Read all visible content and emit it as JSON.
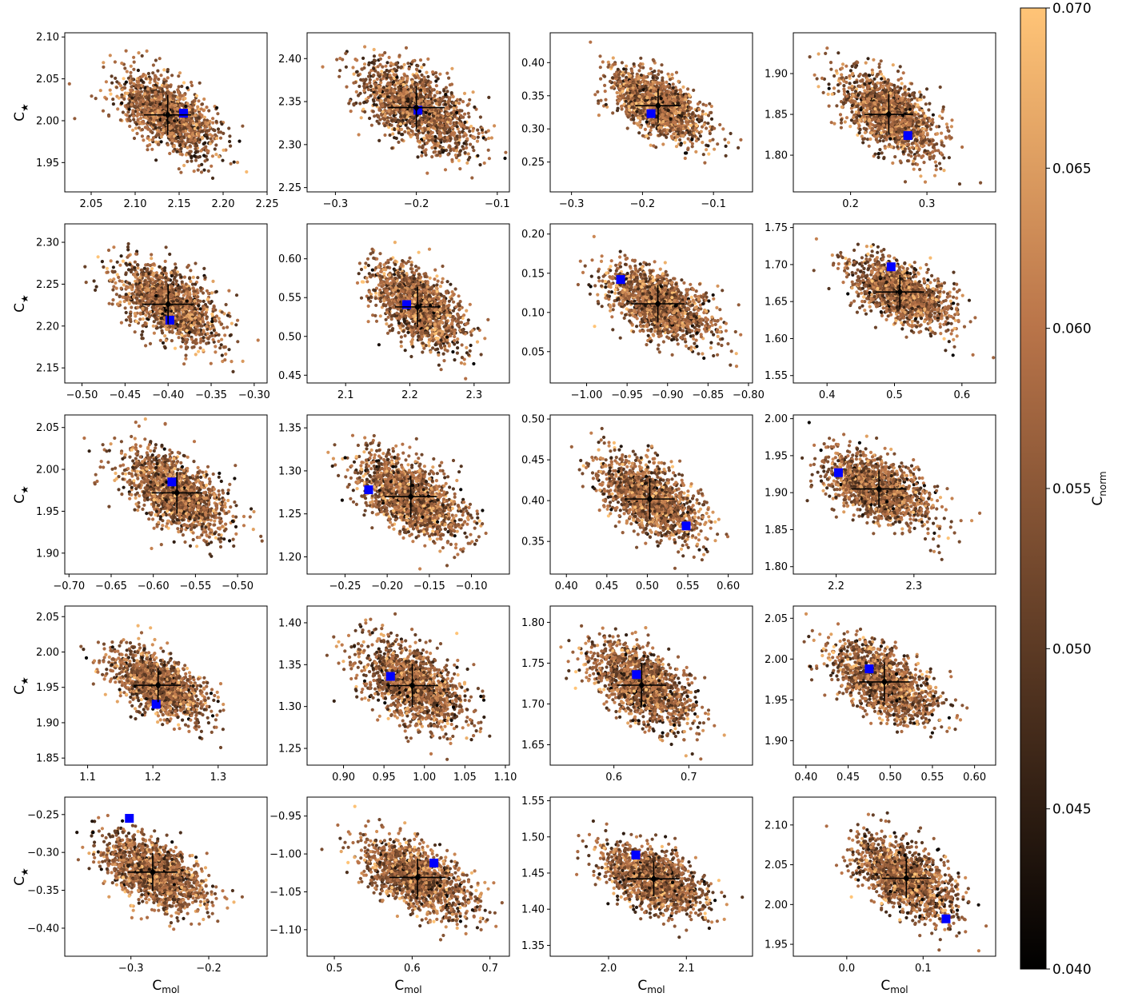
{
  "chart_data": {
    "type": "scatter",
    "grid": false,
    "ylabel": "C",
    "ylabel_sub": "★",
    "xlabel": "C",
    "xlabel_sub": "mol",
    "colorbar": {
      "label": "C",
      "label_sub": "norm",
      "range": [
        0.04,
        0.07
      ],
      "ticks": [
        "0.070",
        "0.065",
        "0.060",
        "0.055",
        "0.050",
        "0.045",
        "0.040"
      ],
      "colors": [
        "#000000",
        "#5c3a24",
        "#b97449",
        "#ffc477"
      ]
    },
    "marker_colors": {
      "estimate": "#000000",
      "truth": "#0000ff"
    },
    "panels": [
      {
        "xlim": [
          2.02,
          2.25
        ],
        "ylim": [
          1.915,
          2.105
        ],
        "xticks": [
          2.05,
          2.1,
          2.15,
          2.2,
          2.25
        ],
        "xtick_labels": [
          "2.05",
          "2.10",
          "2.15",
          "2.20",
          "2.25"
        ],
        "yticks": [
          1.95,
          2.0,
          2.05,
          2.1
        ],
        "ytick_labels": [
          "1.95",
          "2.00",
          "2.05",
          "2.10"
        ],
        "mean": [
          2.137,
          2.007
        ],
        "xerr": 0.027,
        "yerr": 0.024,
        "truth": [
          2.155,
          2.009
        ]
      },
      {
        "xlim": [
          -0.335,
          -0.085
        ],
        "ylim": [
          2.245,
          2.43
        ],
        "xticks": [
          -0.3,
          -0.2,
          -0.1
        ],
        "xtick_labels": [
          "−0.3",
          "−0.2",
          "−0.1"
        ],
        "yticks": [
          2.25,
          2.3,
          2.35,
          2.4
        ],
        "ytick_labels": [
          "2.25",
          "2.30",
          "2.35",
          "2.40"
        ],
        "mean": [
          -0.2,
          2.343
        ],
        "xerr": 0.035,
        "yerr": 0.025,
        "truth": [
          -0.198,
          2.34
        ]
      },
      {
        "xlim": [
          -0.33,
          -0.045
        ],
        "ylim": [
          0.205,
          0.445
        ],
        "xticks": [
          -0.3,
          -0.2,
          -0.1
        ],
        "xtick_labels": [
          "−0.3",
          "−0.2",
          "−0.1"
        ],
        "yticks": [
          0.25,
          0.3,
          0.35,
          0.4
        ],
        "ytick_labels": [
          "0.25",
          "0.30",
          "0.35",
          "0.40"
        ],
        "mean": [
          -0.178,
          0.335
        ],
        "xerr": 0.032,
        "yerr": 0.026,
        "truth": [
          -0.188,
          0.323
        ]
      },
      {
        "xlim": [
          0.125,
          0.39
        ],
        "ylim": [
          1.755,
          1.95
        ],
        "xticks": [
          0.2,
          0.3
        ],
        "xtick_labels": [
          "0.2",
          "0.3"
        ],
        "yticks": [
          1.8,
          1.85,
          1.9
        ],
        "ytick_labels": [
          "1.80",
          "1.85",
          "1.90"
        ],
        "mean": [
          0.25,
          1.85
        ],
        "xerr": 0.032,
        "yerr": 0.025,
        "truth": [
          0.275,
          1.824
        ]
      },
      {
        "xlim": [
          -0.52,
          -0.285
        ],
        "ylim": [
          2.132,
          2.322
        ],
        "xticks": [
          -0.5,
          -0.45,
          -0.4,
          -0.35,
          -0.3
        ],
        "xtick_labels": [
          "−0.50",
          "−0.45",
          "−0.40",
          "−0.35",
          "−0.30"
        ],
        "yticks": [
          2.15,
          2.2,
          2.25,
          2.3
        ],
        "ytick_labels": [
          "2.15",
          "2.20",
          "2.25",
          "2.30"
        ],
        "mean": [
          -0.4,
          2.226
        ],
        "xerr": 0.03,
        "yerr": 0.024,
        "truth": [
          -0.398,
          2.207
        ]
      },
      {
        "xlim": [
          2.04,
          2.355
        ],
        "ylim": [
          0.44,
          0.645
        ],
        "xticks": [
          2.1,
          2.2,
          2.3
        ],
        "xtick_labels": [
          "2.1",
          "2.2",
          "2.3"
        ],
        "yticks": [
          0.45,
          0.5,
          0.55,
          0.6
        ],
        "ytick_labels": [
          "0.45",
          "0.50",
          "0.55",
          "0.60"
        ],
        "mean": [
          2.212,
          0.538
        ],
        "xerr": 0.035,
        "yerr": 0.026,
        "truth": [
          2.195,
          0.541
        ]
      },
      {
        "xlim": [
          -1.045,
          -0.795
        ],
        "ylim": [
          0.01,
          0.213
        ],
        "xticks": [
          -1.0,
          -0.95,
          -0.9,
          -0.85,
          -0.8
        ],
        "xtick_labels": [
          "−1.00",
          "−0.95",
          "−0.90",
          "−0.85",
          "−0.80"
        ],
        "yticks": [
          0.05,
          0.1,
          0.15,
          0.2
        ],
        "ytick_labels": [
          "0.05",
          "0.10",
          "0.15",
          "0.20"
        ],
        "mean": [
          -0.912,
          0.111
        ],
        "xerr": 0.033,
        "yerr": 0.024,
        "truth": [
          -0.958,
          0.142
        ]
      },
      {
        "xlim": [
          0.35,
          0.65
        ],
        "ylim": [
          1.54,
          1.755
        ],
        "xticks": [
          0.4,
          0.5,
          0.6
        ],
        "xtick_labels": [
          "0.4",
          "0.5",
          "0.6"
        ],
        "yticks": [
          1.55,
          1.6,
          1.65,
          1.7,
          1.75
        ],
        "ytick_labels": [
          "1.55",
          "1.60",
          "1.65",
          "1.70",
          "1.75"
        ],
        "mean": [
          0.508,
          1.663
        ],
        "xerr": 0.036,
        "yerr": 0.023,
        "truth": [
          0.495,
          1.697
        ]
      },
      {
        "xlim": [
          -0.705,
          -0.465
        ],
        "ylim": [
          1.875,
          2.065
        ],
        "xticks": [
          -0.7,
          -0.65,
          -0.6,
          -0.55,
          -0.5
        ],
        "xtick_labels": [
          "−0.70",
          "−0.65",
          "−0.60",
          "−0.55",
          "−0.50"
        ],
        "yticks": [
          1.9,
          1.95,
          2.0,
          2.05
        ],
        "ytick_labels": [
          "1.90",
          "1.95",
          "2.00",
          "2.05"
        ],
        "mean": [
          -0.572,
          1.972
        ],
        "xerr": 0.03,
        "yerr": 0.025,
        "truth": [
          -0.578,
          1.985
        ]
      },
      {
        "xlim": [
          -0.295,
          -0.055
        ],
        "ylim": [
          1.18,
          1.365
        ],
        "xticks": [
          -0.25,
          -0.2,
          -0.15,
          -0.1
        ],
        "xtick_labels": [
          "−0.25",
          "−0.20",
          "−0.15",
          "−0.10"
        ],
        "yticks": [
          1.2,
          1.25,
          1.3,
          1.35
        ],
        "ytick_labels": [
          "1.20",
          "1.25",
          "1.30",
          "1.35"
        ],
        "mean": [
          -0.172,
          1.27
        ],
        "xerr": 0.031,
        "yerr": 0.024,
        "truth": [
          -0.222,
          1.278
        ]
      },
      {
        "xlim": [
          0.38,
          0.63
        ],
        "ylim": [
          0.31,
          0.505
        ],
        "xticks": [
          0.4,
          0.45,
          0.5,
          0.55,
          0.6
        ],
        "xtick_labels": [
          "0.40",
          "0.45",
          "0.50",
          "0.55",
          "0.60"
        ],
        "yticks": [
          0.35,
          0.4,
          0.45,
          0.5
        ],
        "ytick_labels": [
          "0.35",
          "0.40",
          "0.45",
          "0.50"
        ],
        "mean": [
          0.503,
          0.402
        ],
        "xerr": 0.031,
        "yerr": 0.025,
        "truth": [
          0.548,
          0.369
        ]
      },
      {
        "xlim": [
          2.145,
          2.405
        ],
        "ylim": [
          1.79,
          2.005
        ],
        "xticks": [
          2.2,
          2.3
        ],
        "xtick_labels": [
          "2.2",
          "2.3"
        ],
        "yticks": [
          1.8,
          1.85,
          1.9,
          1.95,
          2.0
        ],
        "ytick_labels": [
          "1.80",
          "1.85",
          "1.90",
          "1.95",
          "2.00"
        ],
        "mean": [
          2.255,
          1.905
        ],
        "xerr": 0.035,
        "yerr": 0.025,
        "truth": [
          2.203,
          1.927
        ]
      },
      {
        "xlim": [
          1.065,
          1.375
        ],
        "ylim": [
          1.84,
          2.065
        ],
        "xticks": [
          1.1,
          1.2,
          1.3
        ],
        "xtick_labels": [
          "1.1",
          "1.2",
          "1.3"
        ],
        "yticks": [
          1.85,
          1.9,
          1.95,
          2.0,
          2.05
        ],
        "ytick_labels": [
          "1.85",
          "1.90",
          "1.95",
          "2.00",
          "2.05"
        ],
        "mean": [
          1.208,
          1.953
        ],
        "xerr": 0.035,
        "yerr": 0.024,
        "truth": [
          1.205,
          1.926
        ]
      },
      {
        "xlim": [
          0.855,
          1.105
        ],
        "ylim": [
          1.23,
          1.42
        ],
        "xticks": [
          0.9,
          0.95,
          1.0,
          1.05,
          1.1
        ],
        "xtick_labels": [
          "0.90",
          "0.95",
          "1.00",
          "1.05",
          "1.10"
        ],
        "yticks": [
          1.25,
          1.3,
          1.35,
          1.4
        ],
        "ytick_labels": [
          "1.25",
          "1.30",
          "1.35",
          "1.40"
        ],
        "mean": [
          0.985,
          1.325
        ],
        "xerr": 0.032,
        "yerr": 0.026,
        "truth": [
          0.958,
          1.336
        ]
      },
      {
        "xlim": [
          0.515,
          0.785
        ],
        "ylim": [
          1.625,
          1.82
        ],
        "xticks": [
          0.6,
          0.7
        ],
        "xtick_labels": [
          "0.6",
          "0.7"
        ],
        "yticks": [
          1.65,
          1.7,
          1.75,
          1.8
        ],
        "ytick_labels": [
          "1.65",
          "1.70",
          "1.75",
          "1.80"
        ],
        "mean": [
          0.637,
          1.723
        ],
        "xerr": 0.033,
        "yerr": 0.025,
        "truth": [
          0.63,
          1.736
        ]
      },
      {
        "xlim": [
          0.385,
          0.625
        ],
        "ylim": [
          1.87,
          2.065
        ],
        "xticks": [
          0.4,
          0.45,
          0.5,
          0.55,
          0.6
        ],
        "xtick_labels": [
          "0.40",
          "0.45",
          "0.50",
          "0.55",
          "0.60"
        ],
        "yticks": [
          1.9,
          1.95,
          2.0,
          2.05
        ],
        "ytick_labels": [
          "1.90",
          "1.95",
          "2.00",
          "2.05"
        ],
        "mean": [
          0.493,
          1.972
        ],
        "xerr": 0.03,
        "yerr": 0.024,
        "truth": [
          0.475,
          1.988
        ]
      },
      {
        "xlim": [
          -0.385,
          -0.125
        ],
        "ylim": [
          -0.437,
          -0.227
        ],
        "xticks": [
          -0.3,
          -0.2
        ],
        "xtick_labels": [
          "−0.3",
          "−0.2"
        ],
        "yticks": [
          -0.4,
          -0.35,
          -0.3,
          -0.25
        ],
        "ytick_labels": [
          "−0.40",
          "−0.35",
          "−0.30",
          "−0.25"
        ],
        "mean": [
          -0.272,
          -0.326
        ],
        "xerr": 0.032,
        "yerr": 0.025,
        "truth": [
          -0.302,
          -0.255
        ]
      },
      {
        "xlim": [
          0.465,
          0.725
        ],
        "ylim": [
          -1.135,
          -0.925
        ],
        "xticks": [
          0.5,
          0.6,
          0.7
        ],
        "xtick_labels": [
          "0.5",
          "0.6",
          "0.7"
        ],
        "yticks": [
          -1.1,
          -1.05,
          -1.0,
          -0.95
        ],
        "ytick_labels": [
          "−1.10",
          "−1.05",
          "−1.00",
          "−0.95"
        ],
        "mean": [
          0.607,
          -1.031
        ],
        "xerr": 0.036,
        "yerr": 0.025,
        "truth": [
          0.628,
          -1.012
        ]
      },
      {
        "xlim": [
          1.925,
          2.185
        ],
        "ylim": [
          1.335,
          1.555
        ],
        "xticks": [
          2.0,
          2.1
        ],
        "xtick_labels": [
          "2.0",
          "2.1"
        ],
        "yticks": [
          1.35,
          1.4,
          1.45,
          1.5,
          1.55
        ],
        "ytick_labels": [
          "1.35",
          "1.40",
          "1.45",
          "1.50",
          "1.55"
        ],
        "mean": [
          2.058,
          1.442
        ],
        "xerr": 0.033,
        "yerr": 0.024,
        "truth": [
          2.035,
          1.475
        ]
      },
      {
        "xlim": [
          -0.07,
          0.195
        ],
        "ylim": [
          1.935,
          2.135
        ],
        "xticks": [
          0.0,
          0.1
        ],
        "xtick_labels": [
          "0.0",
          "0.1"
        ],
        "yticks": [
          1.95,
          2.0,
          2.05,
          2.1
        ],
        "ytick_labels": [
          "1.95",
          "2.00",
          "2.05",
          "2.10"
        ],
        "mean": [
          0.078,
          2.033
        ],
        "xerr": 0.032,
        "yerr": 0.025,
        "truth": [
          0.13,
          1.982
        ]
      }
    ]
  }
}
